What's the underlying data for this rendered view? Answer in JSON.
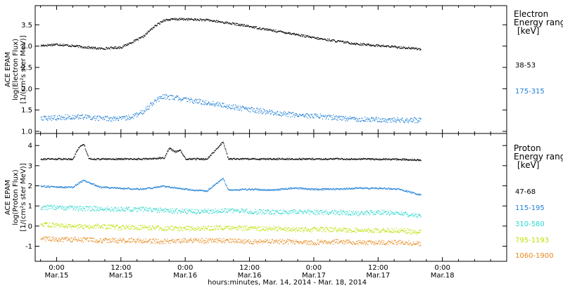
{
  "figure": {
    "xlabel": "hours:minutes, Mar. 14, 2014 - Mar. 18, 2014"
  },
  "chart_data": [
    {
      "type": "scatter",
      "panel": "electron",
      "ylabel_lines": [
        "ACE EPAM",
        "log(Electron Flux)",
        "[1/(cm²s ster MeV)]"
      ],
      "ylim": [
        0.95,
        3.95
      ],
      "yticks": [
        1.0,
        1.5,
        2.0,
        2.5,
        3.0,
        3.5
      ],
      "yticklabels": [
        "1.0",
        "1.5",
        "2.0",
        "2.5",
        "3.0",
        "3.5"
      ],
      "x_hours_range": [
        -4,
        84
      ],
      "xticks_hours": [
        0,
        12,
        24,
        36,
        48,
        60,
        72
      ],
      "xticklabels": [
        [
          "0:00",
          "Mar.15"
        ],
        [
          "12:00",
          "Mar.15"
        ],
        [
          "0:00",
          "Mar.16"
        ],
        [
          "12:00",
          "Mar.16"
        ],
        [
          "0:00",
          "Mar.17"
        ],
        [
          "12:00",
          "Mar.17"
        ],
        [
          "0:00",
          "Mar.18"
        ]
      ],
      "legend_title": [
        "Electron",
        "Energy ranges",
        "[keV]"
      ],
      "series": [
        {
          "name": "38-53",
          "color": "#000000",
          "x": [
            -3,
            0,
            4,
            8,
            12,
            14,
            16,
            18,
            20,
            22,
            24,
            28,
            32,
            36,
            40,
            44,
            48,
            52,
            56,
            60,
            64,
            68
          ],
          "y": [
            3.02,
            3.05,
            3.0,
            2.95,
            2.98,
            3.1,
            3.22,
            3.45,
            3.62,
            3.64,
            3.64,
            3.62,
            3.55,
            3.47,
            3.38,
            3.3,
            3.2,
            3.13,
            3.06,
            3.02,
            2.98,
            2.94
          ]
        },
        {
          "name": "175-315",
          "color": "#1e7fd6",
          "x": [
            -3,
            0,
            4,
            8,
            12,
            14,
            16,
            18,
            20,
            22,
            24,
            28,
            32,
            36,
            40,
            44,
            48,
            52,
            56,
            60,
            64,
            68
          ],
          "y": [
            1.3,
            1.33,
            1.35,
            1.32,
            1.3,
            1.35,
            1.45,
            1.7,
            1.82,
            1.8,
            1.75,
            1.68,
            1.6,
            1.52,
            1.45,
            1.4,
            1.37,
            1.33,
            1.3,
            1.28,
            1.27,
            1.27
          ]
        }
      ]
    },
    {
      "type": "scatter",
      "panel": "proton",
      "ylabel_lines": [
        "ACE EPAM",
        "log(Proton Flux)",
        "[1/(cm²s ster MeV)]"
      ],
      "ylim": [
        -1.75,
        4.6
      ],
      "yticks": [
        -1,
        0,
        1,
        2,
        3,
        4
      ],
      "yticklabels": [
        "-1",
        "0",
        "1",
        "2",
        "3",
        "4"
      ],
      "x_hours_range": [
        -4,
        84
      ],
      "xticks_hours": [
        0,
        12,
        24,
        36,
        48,
        60,
        72
      ],
      "legend_title": [
        "Proton",
        "Energy ranges",
        "[keV]"
      ],
      "series": [
        {
          "name": "47-68",
          "color": "#000000",
          "x": [
            -3,
            0,
            3,
            4,
            5,
            6,
            8,
            12,
            16,
            20,
            21,
            22,
            23,
            24,
            28,
            30,
            31,
            32,
            36,
            40,
            48,
            56,
            64,
            68
          ],
          "y": [
            3.35,
            3.35,
            3.35,
            3.9,
            4.1,
            3.35,
            3.35,
            3.35,
            3.35,
            3.4,
            3.9,
            3.7,
            3.8,
            3.35,
            3.35,
            3.9,
            4.2,
            3.35,
            3.35,
            3.35,
            3.35,
            3.35,
            3.33,
            3.3
          ]
        },
        {
          "name": "115-195",
          "color": "#1e7fd6",
          "x": [
            -3,
            0,
            3,
            5,
            8,
            12,
            16,
            20,
            24,
            28,
            31,
            32,
            36,
            40,
            44,
            48,
            52,
            56,
            60,
            64,
            66,
            68
          ],
          "y": [
            2.0,
            1.95,
            1.95,
            2.3,
            1.95,
            1.9,
            1.85,
            2.0,
            1.85,
            1.75,
            2.4,
            1.8,
            1.85,
            1.8,
            1.9,
            1.85,
            1.85,
            1.9,
            1.9,
            1.85,
            1.7,
            1.55
          ]
        },
        {
          "name": "310-580",
          "color": "#28d8cc",
          "x": [
            -3,
            0,
            4,
            8,
            12,
            16,
            20,
            24,
            28,
            32,
            36,
            40,
            44,
            48,
            52,
            56,
            60,
            64,
            68
          ],
          "y": [
            0.95,
            0.95,
            0.9,
            0.88,
            0.85,
            0.85,
            0.8,
            0.75,
            0.75,
            0.8,
            0.75,
            0.7,
            0.75,
            0.7,
            0.7,
            0.65,
            0.7,
            0.65,
            0.5
          ]
        },
        {
          "name": "795-1193",
          "color": "#bce000",
          "x": [
            -3,
            0,
            4,
            8,
            12,
            16,
            20,
            24,
            28,
            32,
            36,
            40,
            44,
            48,
            52,
            56,
            60,
            64,
            68
          ],
          "y": [
            0.1,
            0.05,
            0.0,
            0.0,
            -0.05,
            -0.05,
            -0.1,
            -0.1,
            -0.1,
            -0.05,
            -0.1,
            -0.1,
            -0.15,
            -0.15,
            -0.15,
            -0.2,
            -0.2,
            -0.2,
            -0.3
          ]
        },
        {
          "name": "1060-1900",
          "color": "#e8881a",
          "x": [
            -3,
            0,
            4,
            8,
            12,
            16,
            20,
            24,
            28,
            32,
            36,
            40,
            44,
            48,
            52,
            56,
            60,
            64,
            68
          ],
          "y": [
            -0.6,
            -0.65,
            -0.65,
            -0.7,
            -0.7,
            -0.7,
            -0.75,
            -0.7,
            -0.7,
            -0.7,
            -0.75,
            -0.75,
            -0.75,
            -0.8,
            -0.75,
            -0.8,
            -0.8,
            -0.8,
            -0.85
          ]
        }
      ]
    }
  ]
}
